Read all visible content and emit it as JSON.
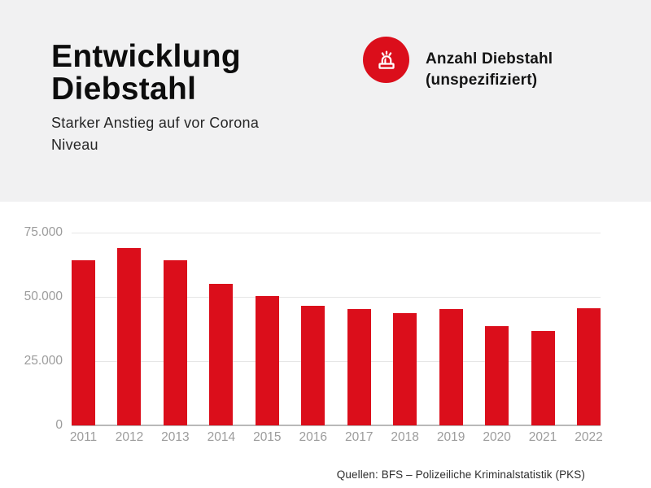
{
  "header": {
    "title": "Entwicklung Diebstahl",
    "subtitle": "Starker Anstieg auf vor Corona Niveau"
  },
  "legend": {
    "icon": "siren-icon",
    "circle_color": "#db0e1b",
    "label": "Anzahl Diebstahl (unspezifiziert)"
  },
  "chart_data": {
    "type": "bar",
    "title": "Entwicklung Diebstahl",
    "series_name": "Anzahl Diebstahl (unspezifiziert)",
    "categories": [
      "2011",
      "2012",
      "2013",
      "2014",
      "2015",
      "2016",
      "2017",
      "2018",
      "2019",
      "2020",
      "2021",
      "2022"
    ],
    "values": [
      64500,
      69000,
      64500,
      55200,
      50500,
      46600,
      45400,
      43800,
      45400,
      38600,
      36800,
      45600
    ],
    "bar_color": "#db0e1b",
    "xlabel": "",
    "ylabel": "",
    "ylim": [
      0,
      79250
    ],
    "yticks": [
      {
        "value": 0,
        "label": "0"
      },
      {
        "value": 25000,
        "label": "25.000"
      },
      {
        "value": 50000,
        "label": "50.000"
      },
      {
        "value": 75000,
        "label": "75.000"
      }
    ],
    "grid": true,
    "legend_position": "top-right"
  },
  "footer": {
    "source": "Quellen: BFS – Polizeiliche Kriminalstatistik (PKS)"
  }
}
